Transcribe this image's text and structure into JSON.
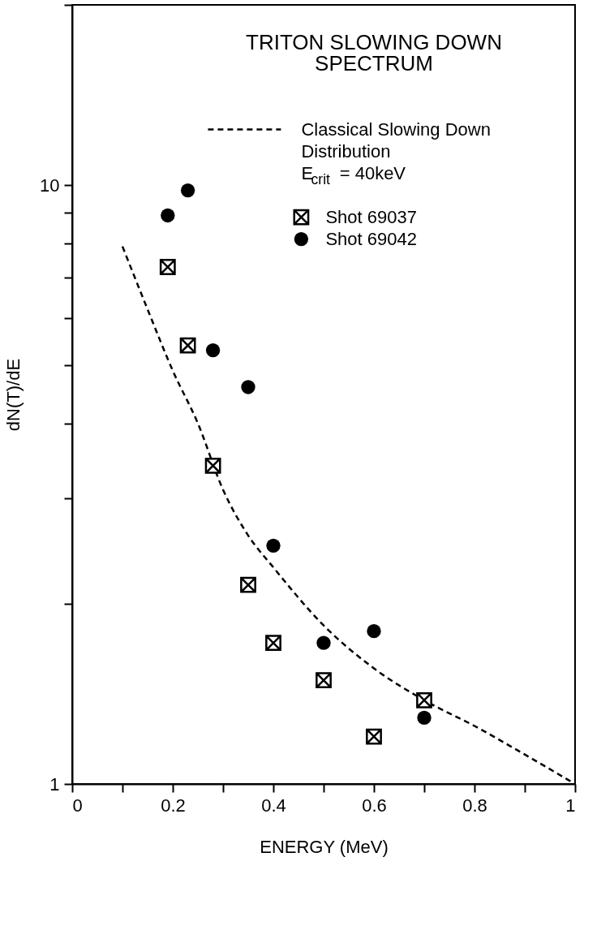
{
  "chart_data": {
    "type": "scatter",
    "title": "TRITON SLOWING DOWN\nSPECTRUM",
    "xlabel": "ENERGY (MeV)",
    "ylabel": "dN(T)/dE",
    "xlim": [
      0,
      1
    ],
    "ylim": [
      1,
      20
    ],
    "log": "y",
    "grid": false,
    "legend": "top right",
    "xticks": [
      0,
      {
        "value": 0.1,
        "label": null
      },
      0.2,
      {
        "value": 0.3,
        "label": null
      },
      0.4,
      {
        "value": 0.5,
        "label": null
      },
      0.6,
      {
        "value": 0.7,
        "label": null
      },
      0.8,
      {
        "value": 0.9,
        "label": null
      },
      1
    ],
    "yticks": [
      1,
      {
        "value": 2,
        "label": null
      },
      {
        "value": 3,
        "label": null
      },
      {
        "value": 4,
        "label": null
      },
      {
        "value": 5,
        "label": null
      },
      {
        "value": 6,
        "label": null
      },
      {
        "value": 7,
        "label": null
      },
      {
        "value": 8,
        "label": null
      },
      {
        "value": 9,
        "label": null
      },
      10,
      {
        "value": 20,
        "label": null
      }
    ],
    "series": [
      {
        "name": "Classical Slowing Down Distribution E$_{crit}$= 40keV",
        "type": "line",
        "line_style": "dashed",
        "marker": "none",
        "color": "#000000",
        "x": [
          0.1,
          0.15,
          0.2,
          0.25,
          0.3,
          0.35,
          0.4,
          0.5,
          0.6,
          0.7,
          0.8,
          0.9,
          1.0
        ],
        "values": [
          7.9,
          6.2,
          4.9,
          4.0,
          3.1,
          2.6,
          2.3,
          1.84,
          1.56,
          1.38,
          1.25,
          1.12,
          1.0
        ]
      },
      {
        "name": "Shot 69037",
        "marker": "cross",
        "color": "#000000",
        "x": [
          0.19,
          0.23,
          0.28,
          0.35,
          0.4,
          0.5,
          0.6,
          0.7
        ],
        "values": [
          7.3,
          5.4,
          3.4,
          2.15,
          1.72,
          1.49,
          1.2,
          1.38
        ]
      },
      {
        "name": "Shot 69042",
        "marker": "circle",
        "color": "#000000",
        "x": [
          0.19,
          0.23,
          0.28,
          0.35,
          0.4,
          0.5,
          0.6,
          0.7
        ],
        "values": [
          8.9,
          9.8,
          5.3,
          4.6,
          2.5,
          1.72,
          1.8,
          1.29
        ]
      }
    ]
  }
}
